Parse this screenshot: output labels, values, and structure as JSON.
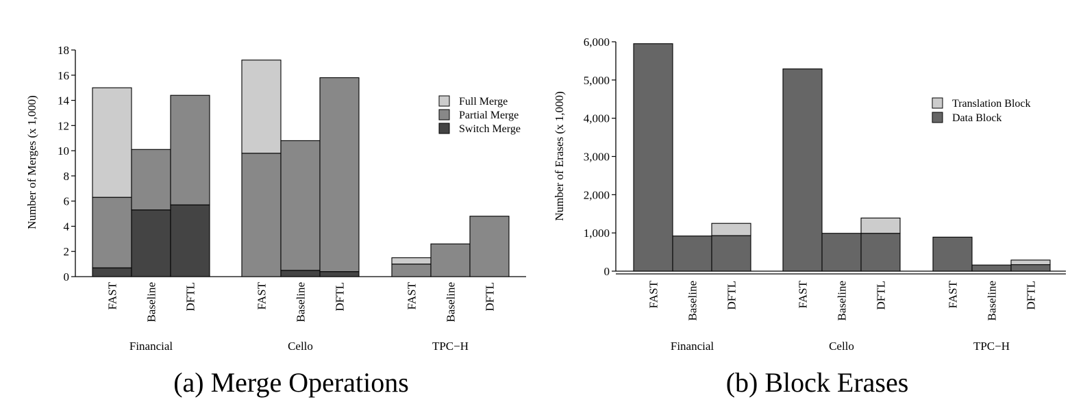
{
  "chart_data": [
    {
      "type": "bar",
      "stacked": true,
      "caption": "(a) Merge Operations",
      "ylabel": "Number of Merges (x 1,000)",
      "xlabel": "",
      "ylim": [
        0,
        18
      ],
      "yticks": [
        "0",
        "2",
        "4",
        "6",
        "8",
        "10",
        "12",
        "14",
        "16",
        "18"
      ],
      "groups": [
        "Financial",
        "Cello",
        "TPC−H"
      ],
      "categories": [
        "FAST",
        "Baseline",
        "DFTL"
      ],
      "series": [
        {
          "name": "Switch Merge",
          "color": "#444444",
          "values": [
            [
              0.7,
              5.3,
              5.7
            ],
            [
              0,
              0.5,
              0.4
            ],
            [
              0,
              0,
              0
            ]
          ]
        },
        {
          "name": "Partial Merge",
          "color": "#888888",
          "values": [
            [
              5.6,
              4.8,
              8.7
            ],
            [
              9.8,
              10.3,
              15.4
            ],
            [
              1.0,
              2.6,
              4.8
            ]
          ]
        },
        {
          "name": "Full Merge",
          "color": "#cccccc",
          "values": [
            [
              8.7,
              0,
              0
            ],
            [
              7.4,
              0,
              0
            ],
            [
              0.5,
              0,
              0
            ]
          ]
        }
      ],
      "legend": {
        "position": "right",
        "entries": [
          "Full Merge",
          "Partial Merge",
          "Switch Merge"
        ]
      },
      "grid": false
    },
    {
      "type": "bar",
      "stacked": true,
      "caption": "(b) Block Erases",
      "ylabel": "Number of Erases (x 1,000)",
      "xlabel": "",
      "ylim": [
        0,
        6000
      ],
      "yticks": [
        "0",
        "1,000",
        "2,000",
        "3,000",
        "4,000",
        "5,000",
        "6,000"
      ],
      "groups": [
        "Financial",
        "Cello",
        "TPC−H"
      ],
      "categories": [
        "FAST",
        "Baseline",
        "DFTL"
      ],
      "series": [
        {
          "name": "Data Block",
          "color": "#666666",
          "values": [
            [
              5950,
              920,
              930
            ],
            [
              5290,
              990,
              990
            ],
            [
              890,
              160,
              170
            ]
          ]
        },
        {
          "name": "Translation Block",
          "color": "#cccccc",
          "values": [
            [
              0,
              0,
              320
            ],
            [
              0,
              0,
              400
            ],
            [
              0,
              0,
              120
            ]
          ]
        }
      ],
      "legend": {
        "position": "right",
        "entries": [
          "Translation Block",
          "Data Block"
        ]
      },
      "grid": false
    }
  ]
}
